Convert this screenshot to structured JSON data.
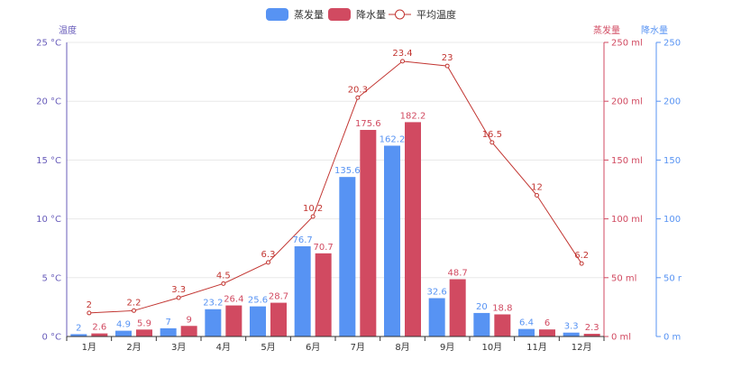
{
  "chart_data": {
    "type": "bar",
    "categories": [
      "1月",
      "2月",
      "3月",
      "4月",
      "5月",
      "6月",
      "7月",
      "8月",
      "9月",
      "10月",
      "11月",
      "12月"
    ],
    "legend": {
      "placement": "top-center",
      "items": [
        {
          "name": "蒸发量",
          "kind": "bar",
          "color": "#5793f3"
        },
        {
          "name": "降水量",
          "kind": "bar",
          "color": "#d14a61"
        },
        {
          "name": "平均温度",
          "kind": "line",
          "color": "#c23531"
        }
      ]
    },
    "axes": {
      "y_left": {
        "name": "温度",
        "ticks": [
          "0 °C",
          "5 °C",
          "10 °C",
          "15 °C",
          "20 °C",
          "25 °C"
        ],
        "range": [
          0,
          25
        ],
        "unit": "°C",
        "color": "#675bba"
      },
      "y_right1": {
        "name": "蒸发量",
        "ticks": [
          "0 ml",
          "50 ml",
          "100 ml",
          "150 ml",
          "200 ml",
          "250 ml"
        ],
        "range": [
          0,
          250
        ],
        "unit": "ml",
        "color": "#d14a61"
      },
      "y_right2": {
        "name": "降水量",
        "ticks": [
          "0 m",
          "50 r",
          "100",
          "150",
          "200",
          "250"
        ],
        "range": [
          0,
          250
        ],
        "color": "#5793f3"
      }
    },
    "grid": "horizontal",
    "series": [
      {
        "name": "蒸发量",
        "type": "bar",
        "axis": "y_right2",
        "color": "#5793f3",
        "values": [
          2,
          4.9,
          7,
          23.2,
          25.6,
          76.7,
          135.6,
          162.2,
          32.6,
          20,
          6.4,
          3.3
        ]
      },
      {
        "name": "降水量",
        "type": "bar",
        "axis": "y_right1",
        "color": "#d14a61",
        "values": [
          2.6,
          5.9,
          9,
          26.4,
          28.7,
          70.7,
          175.6,
          182.2,
          48.7,
          18.8,
          6,
          2.3
        ]
      },
      {
        "name": "平均温度",
        "type": "line",
        "axis": "y_left",
        "color": "#c23531",
        "values": [
          2,
          2.2,
          3.3,
          4.5,
          6.3,
          10.2,
          20.3,
          23.4,
          23,
          16.5,
          12,
          6.2
        ]
      }
    ]
  }
}
